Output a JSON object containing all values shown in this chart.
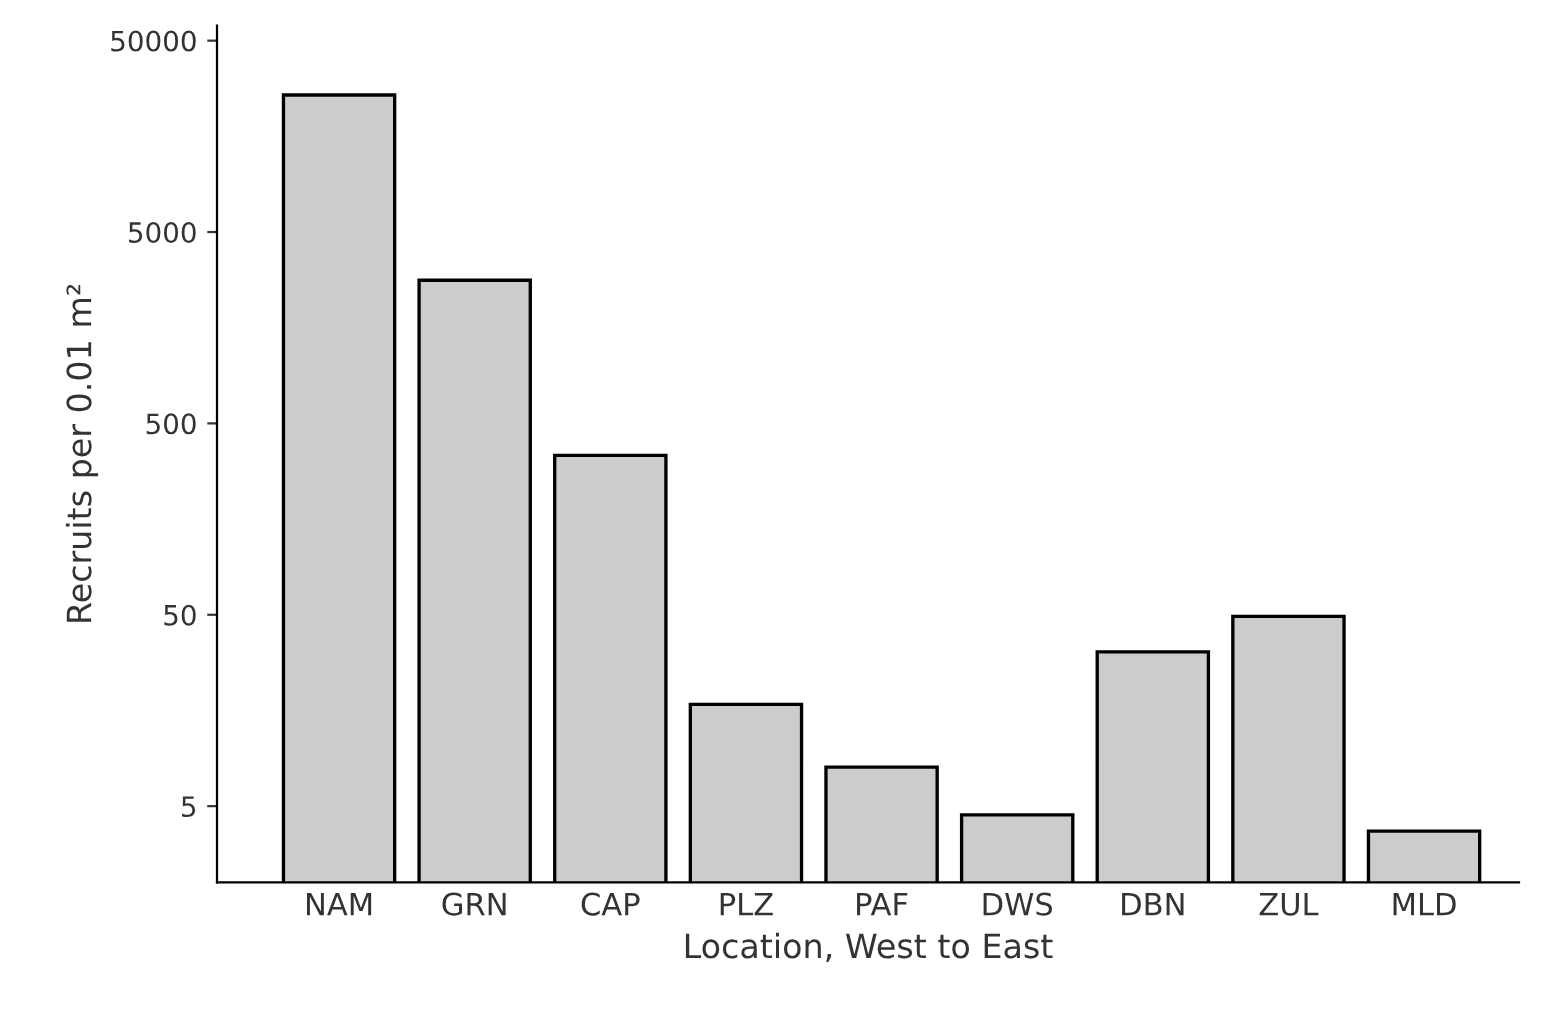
{
  "chart_data": {
    "type": "bar",
    "xlabel": "Location, West to East",
    "ylabel": "Recruits per 0.01 m²",
    "categories": [
      "NAM",
      "GRN",
      "CAP",
      "PLZ",
      "PAF",
      "DWS",
      "DBN",
      "ZUL",
      "MLD"
    ],
    "values": [
      26000,
      2800,
      340,
      17,
      8,
      4.5,
      32,
      49,
      3.7
    ],
    "color": "#cccccc",
    "log": true,
    "ylim": [
      2,
      60000
    ],
    "yticks": [
      5,
      50,
      500,
      5000,
      50000
    ],
    "grid": false
  }
}
